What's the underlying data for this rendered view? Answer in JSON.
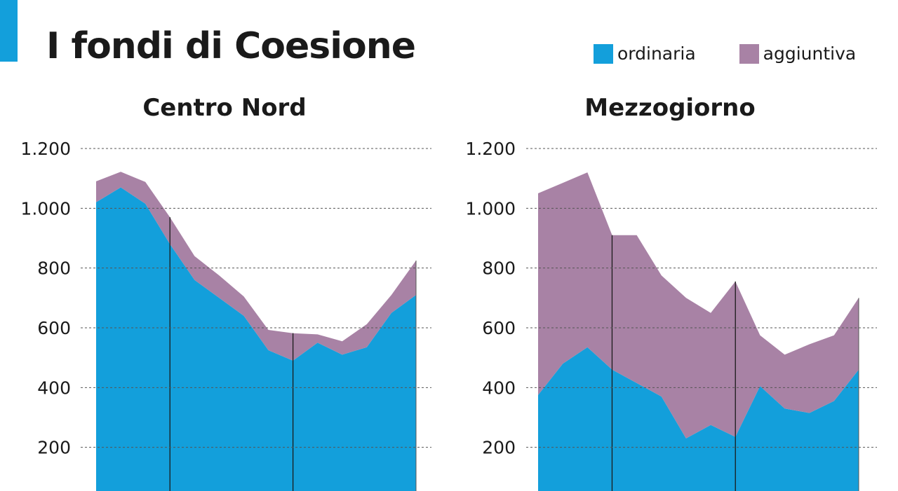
{
  "header": {
    "title": "I fondi di Coesione",
    "accent_color": "#139fdb"
  },
  "legend": {
    "placement": "top-right",
    "items": [
      {
        "label": "ordinaria",
        "color": "#139fdb"
      },
      {
        "label": "aggiuntiva",
        "color": "#a882a5"
      }
    ]
  },
  "chart_data": [
    {
      "type": "area",
      "stacked": true,
      "title": "Centro Nord",
      "xlabel": "",
      "ylabel": "",
      "ylim": [
        0,
        1200
      ],
      "yticks": [
        "1.200",
        "1.000",
        "800",
        "600",
        "400",
        "200"
      ],
      "ytick_values": [
        1200,
        1000,
        800,
        600,
        400,
        200
      ],
      "grid": true,
      "x": [
        1,
        2,
        3,
        4,
        5,
        6,
        7,
        8,
        9,
        10,
        11,
        12,
        13,
        14
      ],
      "dividers_at": [
        4,
        9
      ],
      "series": [
        {
          "name": "ordinaria",
          "color": "#139fdb",
          "values": [
            1020,
            1070,
            1015,
            880,
            760,
            700,
            640,
            525,
            490,
            550,
            510,
            535,
            650,
            710
          ]
        },
        {
          "name": "aggiuntiva",
          "color": "#a882a5",
          "values": [
            70,
            52,
            73,
            90,
            80,
            75,
            65,
            68,
            92,
            28,
            45,
            77,
            60,
            115
          ]
        }
      ]
    },
    {
      "type": "area",
      "stacked": true,
      "title": "Mezzogiorno",
      "xlabel": "",
      "ylabel": "",
      "ylim": [
        0,
        1200
      ],
      "yticks": [
        "1.200",
        "1.000",
        "800",
        "600",
        "400",
        "200"
      ],
      "ytick_values": [
        1200,
        1000,
        800,
        600,
        400,
        200
      ],
      "grid": true,
      "x": [
        1,
        2,
        3,
        4,
        5,
        6,
        7,
        8,
        9,
        10,
        11,
        12,
        13,
        14
      ],
      "dividers_at": [
        4,
        9
      ],
      "series": [
        {
          "name": "ordinaria",
          "color": "#139fdb",
          "values": [
            375,
            480,
            535,
            460,
            415,
            370,
            230,
            275,
            235,
            405,
            330,
            315,
            355,
            460
          ]
        },
        {
          "name": "aggiuntiva",
          "color": "#a882a5",
          "values": [
            675,
            605,
            585,
            450,
            495,
            405,
            470,
            375,
            520,
            170,
            180,
            230,
            220,
            240
          ]
        }
      ]
    }
  ]
}
